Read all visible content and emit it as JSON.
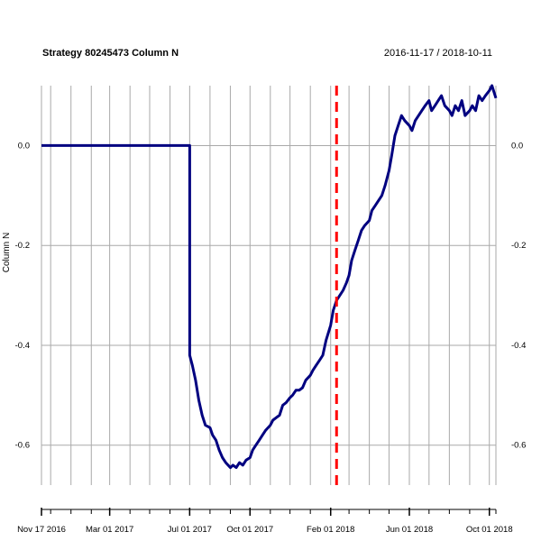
{
  "chart_data": {
    "type": "line",
    "title": "Strategy 80245473 Column N",
    "date_range": "2016-11-17 / 2018-10-11",
    "ylabel": "Column N",
    "xlabel": "",
    "x_range": [
      "2016-11-17",
      "2018-10-11"
    ],
    "ylim": [
      -0.68,
      0.12
    ],
    "y_ticks": [
      0.0,
      -0.2,
      -0.4,
      -0.6
    ],
    "y_tick_labels": [
      "0.0",
      "-0.2",
      "-0.4",
      "-0.6"
    ],
    "x_tick_labels": [
      {
        "date": "2016-11-17",
        "label": "Nov 17 2016"
      },
      {
        "date": "2017-03-01",
        "label": "Mar 01 2017"
      },
      {
        "date": "2017-07-01",
        "label": "Jul 01 2017"
      },
      {
        "date": "2017-10-01",
        "label": "Oct 01 2017"
      },
      {
        "date": "2018-02-01",
        "label": "Feb 01 2018"
      },
      {
        "date": "2018-06-01",
        "label": "Jun 01 2018"
      },
      {
        "date": "2018-10-01",
        "label": "Oct 01 2018"
      }
    ],
    "minor_tick_dates": [
      "2016-11-17",
      "2016-12-01",
      "2017-01-01",
      "2017-02-01",
      "2017-03-01",
      "2017-04-01",
      "2017-05-01",
      "2017-06-01",
      "2017-07-01",
      "2017-08-01",
      "2017-09-01",
      "2017-10-01",
      "2017-11-01",
      "2017-12-01",
      "2018-01-01",
      "2018-02-01",
      "2018-03-01",
      "2018-04-01",
      "2018-05-01",
      "2018-06-01",
      "2018-07-01",
      "2018-08-01",
      "2018-09-01",
      "2018-10-01",
      "2018-10-11"
    ],
    "grid": true,
    "vline": {
      "date": "2018-02-10",
      "color": "#ff0000",
      "style": "dashed"
    },
    "colors": {
      "series": "#000080",
      "grid": "#a9a9a9",
      "vline": "#ff0000"
    },
    "series": [
      {
        "x": [
          "2016-11-17",
          "2017-07-01",
          "2017-07-01",
          "2017-07-05",
          "2017-07-10",
          "2017-07-15",
          "2017-07-20",
          "2017-07-25",
          "2017-08-01",
          "2017-08-05",
          "2017-08-10",
          "2017-08-15",
          "2017-08-20",
          "2017-08-25",
          "2017-09-01",
          "2017-09-05",
          "2017-09-10",
          "2017-09-15",
          "2017-09-20",
          "2017-09-25",
          "2017-10-01",
          "2017-10-05",
          "2017-10-10",
          "2017-10-15",
          "2017-10-20",
          "2017-10-25",
          "2017-11-01",
          "2017-11-05",
          "2017-11-10",
          "2017-11-15",
          "2017-11-20",
          "2017-11-25",
          "2017-12-01",
          "2017-12-05",
          "2017-12-10",
          "2017-12-15",
          "2017-12-20",
          "2017-12-25",
          "2018-01-01",
          "2018-01-05",
          "2018-01-10",
          "2018-01-15",
          "2018-01-20",
          "2018-01-25",
          "2018-02-01",
          "2018-02-05",
          "2018-02-10",
          "2018-02-15",
          "2018-02-20",
          "2018-02-25",
          "2018-03-01",
          "2018-03-05",
          "2018-03-10",
          "2018-03-15",
          "2018-03-20",
          "2018-03-25",
          "2018-04-01",
          "2018-04-05",
          "2018-04-10",
          "2018-04-15",
          "2018-04-20",
          "2018-04-25",
          "2018-05-01",
          "2018-05-05",
          "2018-05-10",
          "2018-05-15",
          "2018-05-20",
          "2018-05-25",
          "2018-06-01",
          "2018-06-05",
          "2018-06-10",
          "2018-06-15",
          "2018-06-20",
          "2018-06-25",
          "2018-07-01",
          "2018-07-05",
          "2018-07-10",
          "2018-07-15",
          "2018-07-20",
          "2018-07-25",
          "2018-08-01",
          "2018-08-05",
          "2018-08-10",
          "2018-08-15",
          "2018-08-20",
          "2018-08-25",
          "2018-09-01",
          "2018-09-05",
          "2018-09-10",
          "2018-09-15",
          "2018-09-20",
          "2018-09-25",
          "2018-10-01",
          "2018-10-05",
          "2018-10-11"
        ],
        "values": [
          0.0,
          0.0,
          -0.42,
          -0.44,
          -0.47,
          -0.51,
          -0.54,
          -0.56,
          -0.565,
          -0.58,
          -0.59,
          -0.61,
          -0.625,
          -0.635,
          -0.645,
          -0.64,
          -0.645,
          -0.635,
          -0.64,
          -0.63,
          -0.625,
          -0.61,
          -0.6,
          -0.59,
          -0.58,
          -0.57,
          -0.56,
          -0.55,
          -0.545,
          -0.54,
          -0.52,
          -0.515,
          -0.505,
          -0.5,
          -0.49,
          -0.49,
          -0.485,
          -0.47,
          -0.46,
          -0.45,
          -0.44,
          -0.43,
          -0.42,
          -0.39,
          -0.36,
          -0.33,
          -0.31,
          -0.3,
          -0.29,
          -0.275,
          -0.26,
          -0.23,
          -0.21,
          -0.19,
          -0.17,
          -0.16,
          -0.15,
          -0.13,
          -0.12,
          -0.11,
          -0.1,
          -0.08,
          -0.05,
          -0.02,
          0.02,
          0.04,
          0.06,
          0.05,
          0.04,
          0.03,
          0.05,
          0.06,
          0.07,
          0.08,
          0.09,
          0.07,
          0.08,
          0.09,
          0.1,
          0.08,
          0.07,
          0.06,
          0.08,
          0.07,
          0.09,
          0.06,
          0.07,
          0.08,
          0.07,
          0.1,
          0.09,
          0.1,
          0.11,
          0.12,
          0.095
        ]
      }
    ]
  }
}
